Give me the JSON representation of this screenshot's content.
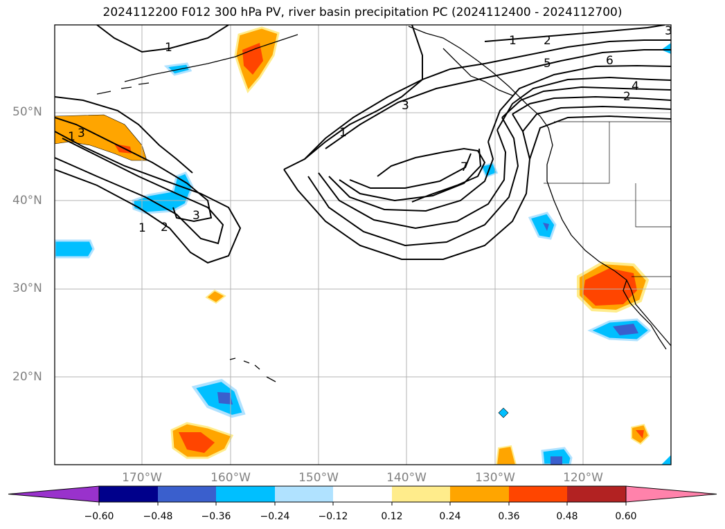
{
  "title": "2024112200 F012 300 hPa PV, river basin precipitation PC (2024112400 - 2024112700)",
  "lat_labels": [
    "50°N",
    "40°N",
    "30°N",
    "20°N"
  ],
  "lon_labels": [
    "170°W",
    "160°W",
    "150°W",
    "140°W",
    "130°W",
    "120°W"
  ],
  "contour_labels": [
    "1",
    "1",
    "1",
    "1",
    "1",
    "2",
    "2",
    "2",
    "3",
    "3",
    "3",
    "3",
    "4",
    "5",
    "6",
    "7"
  ],
  "colorbar": {
    "ticks": [
      "−0.60",
      "−0.48",
      "−0.36",
      "−0.24",
      "−0.12",
      "0.12",
      "0.24",
      "0.36",
      "0.48",
      "0.60"
    ],
    "colors": [
      "#9932cc",
      "#00008b",
      "#3a5fcd",
      "#00bfff",
      "#b0e2ff",
      "#ffffff",
      "#ffec8b",
      "#ffa500",
      "#ff4500",
      "#b22222",
      "#ff82ab"
    ]
  }
}
